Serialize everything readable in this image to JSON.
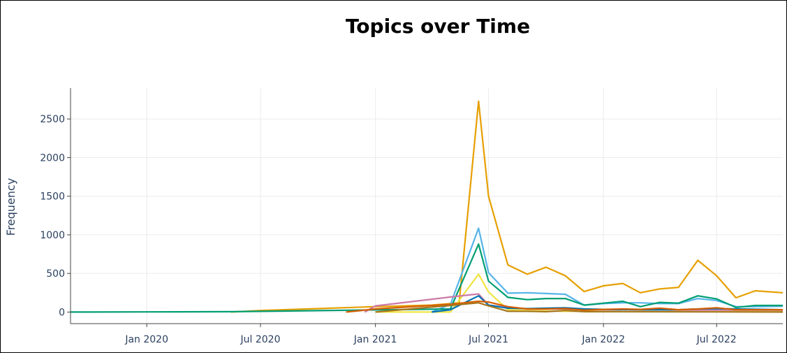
{
  "chart_data": {
    "type": "line",
    "title": "Topics over Time",
    "xlabel": "",
    "ylabel": "Frequency",
    "xlim": [
      "2019-09-01",
      "2022-10-15"
    ],
    "ylim": [
      -150,
      2900
    ],
    "grid": true,
    "legend": "none",
    "x_ticks": [
      {
        "value": "2020-01-01",
        "label": "Jan 2020"
      },
      {
        "value": "2020-07-01",
        "label": "Jul 2020"
      },
      {
        "value": "2021-01-01",
        "label": "Jan 2021"
      },
      {
        "value": "2021-07-01",
        "label": "Jul 2021"
      },
      {
        "value": "2022-01-01",
        "label": "Jan 2022"
      },
      {
        "value": "2022-07-01",
        "label": "Jul 2022"
      }
    ],
    "y_ticks": [
      {
        "value": 0,
        "label": "0"
      },
      {
        "value": 500,
        "label": "500"
      },
      {
        "value": 1000,
        "label": "1000"
      },
      {
        "value": 1500,
        "label": "1500"
      },
      {
        "value": 2000,
        "label": "2000"
      },
      {
        "value": 2500,
        "label": "2500"
      }
    ],
    "series": [
      {
        "color": "#E69F00",
        "points": [
          [
            "2020-05-15",
            0
          ],
          [
            "2020-07-01",
            20
          ],
          [
            "2020-10-01",
            45
          ],
          [
            "2021-01-01",
            70
          ],
          [
            "2021-04-01",
            90
          ],
          [
            "2021-05-15",
            120
          ],
          [
            "2021-06-15",
            2730
          ],
          [
            "2021-07-01",
            1500
          ],
          [
            "2021-08-01",
            610
          ],
          [
            "2021-09-01",
            490
          ],
          [
            "2021-10-01",
            580
          ],
          [
            "2021-11-01",
            470
          ],
          [
            "2021-12-01",
            265
          ],
          [
            "2022-01-01",
            340
          ],
          [
            "2022-02-01",
            370
          ],
          [
            "2022-03-01",
            250
          ],
          [
            "2022-04-01",
            300
          ],
          [
            "2022-05-01",
            320
          ],
          [
            "2022-06-01",
            670
          ],
          [
            "2022-07-01",
            470
          ],
          [
            "2022-08-01",
            185
          ],
          [
            "2022-09-01",
            275
          ],
          [
            "2022-10-15",
            250
          ]
        ]
      },
      {
        "color": "#56B4E9",
        "points": [
          [
            "2021-04-01",
            0
          ],
          [
            "2021-05-01",
            100
          ],
          [
            "2021-06-15",
            1085
          ],
          [
            "2021-07-01",
            510
          ],
          [
            "2021-08-01",
            245
          ],
          [
            "2021-09-01",
            250
          ],
          [
            "2021-10-01",
            240
          ],
          [
            "2021-11-01",
            230
          ],
          [
            "2021-12-01",
            90
          ],
          [
            "2022-01-01",
            110
          ],
          [
            "2022-02-01",
            120
          ],
          [
            "2022-03-01",
            120
          ],
          [
            "2022-04-01",
            110
          ],
          [
            "2022-05-01",
            110
          ],
          [
            "2022-06-01",
            175
          ],
          [
            "2022-07-01",
            150
          ],
          [
            "2022-08-01",
            70
          ],
          [
            "2022-09-01",
            70
          ],
          [
            "2022-10-15",
            75
          ]
        ]
      },
      {
        "color": "#009E73",
        "points": [
          [
            "2019-09-01",
            0
          ],
          [
            "2020-01-01",
            2
          ],
          [
            "2020-05-15",
            5
          ],
          [
            "2021-05-01",
            40
          ],
          [
            "2021-06-15",
            880
          ],
          [
            "2021-07-01",
            400
          ],
          [
            "2021-08-01",
            190
          ],
          [
            "2021-09-01",
            160
          ],
          [
            "2021-10-01",
            175
          ],
          [
            "2021-11-01",
            175
          ],
          [
            "2021-12-01",
            90
          ],
          [
            "2022-01-01",
            115
          ],
          [
            "2022-02-01",
            140
          ],
          [
            "2022-03-01",
            70
          ],
          [
            "2022-04-01",
            125
          ],
          [
            "2022-05-01",
            115
          ],
          [
            "2022-06-01",
            210
          ],
          [
            "2022-07-01",
            170
          ],
          [
            "2022-08-01",
            60
          ],
          [
            "2022-09-01",
            85
          ],
          [
            "2022-10-15",
            85
          ]
        ]
      },
      {
        "color": "#F0E442",
        "points": [
          [
            "2021-01-01",
            0
          ],
          [
            "2021-05-01",
            0
          ],
          [
            "2021-06-15",
            490
          ],
          [
            "2021-07-01",
            260
          ],
          [
            "2021-08-01",
            30
          ],
          [
            "2021-09-01",
            20
          ],
          [
            "2021-10-01",
            15
          ],
          [
            "2021-11-01",
            10
          ],
          [
            "2021-12-01",
            10
          ],
          [
            "2022-01-01",
            5
          ],
          [
            "2022-10-15",
            5
          ]
        ]
      },
      {
        "color": "#CC79A7",
        "points": [
          [
            "2020-12-15",
            0
          ],
          [
            "2021-01-01",
            80
          ],
          [
            "2021-05-01",
            195
          ],
          [
            "2021-06-15",
            235
          ],
          [
            "2021-07-01",
            90
          ],
          [
            "2021-08-01",
            60
          ],
          [
            "2021-09-01",
            40
          ],
          [
            "2021-10-01",
            40
          ],
          [
            "2021-11-01",
            40
          ],
          [
            "2021-12-01",
            30
          ],
          [
            "2022-01-01",
            30
          ],
          [
            "2022-06-01",
            25
          ],
          [
            "2022-10-15",
            25
          ]
        ]
      },
      {
        "color": "#0072B2",
        "points": [
          [
            "2021-04-01",
            0
          ],
          [
            "2021-05-01",
            30
          ],
          [
            "2021-06-15",
            210
          ],
          [
            "2021-07-01",
            90
          ],
          [
            "2021-08-01",
            50
          ],
          [
            "2021-09-01",
            45
          ],
          [
            "2021-10-01",
            50
          ],
          [
            "2021-11-01",
            55
          ],
          [
            "2021-12-01",
            40
          ],
          [
            "2022-01-01",
            35
          ],
          [
            "2022-03-01",
            30
          ],
          [
            "2022-05-01",
            30
          ],
          [
            "2022-06-01",
            40
          ],
          [
            "2022-07-01",
            45
          ],
          [
            "2022-10-15",
            30
          ]
        ]
      },
      {
        "color": "#D55E00",
        "points": [
          [
            "2020-11-15",
            0
          ],
          [
            "2021-01-01",
            40
          ],
          [
            "2021-05-01",
            100
          ],
          [
            "2021-06-15",
            140
          ],
          [
            "2021-07-01",
            130
          ],
          [
            "2021-08-01",
            70
          ],
          [
            "2021-09-01",
            40
          ],
          [
            "2021-10-01",
            40
          ],
          [
            "2021-11-01",
            45
          ],
          [
            "2021-12-01",
            25
          ],
          [
            "2022-01-01",
            35
          ],
          [
            "2022-02-01",
            40
          ],
          [
            "2022-03-01",
            35
          ],
          [
            "2022-04-01",
            50
          ],
          [
            "2022-05-01",
            30
          ],
          [
            "2022-06-01",
            40
          ],
          [
            "2022-07-01",
            55
          ],
          [
            "2022-08-01",
            30
          ],
          [
            "2022-09-01",
            30
          ],
          [
            "2022-10-15",
            30
          ]
        ]
      },
      {
        "color": "#A6761D",
        "points": [
          [
            "2021-01-01",
            0
          ],
          [
            "2021-05-01",
            85
          ],
          [
            "2021-06-15",
            120
          ],
          [
            "2021-07-01",
            80
          ],
          [
            "2021-08-01",
            10
          ],
          [
            "2021-09-01",
            10
          ],
          [
            "2021-10-01",
            5
          ],
          [
            "2021-11-01",
            20
          ],
          [
            "2021-12-01",
            5
          ],
          [
            "2022-01-01",
            5
          ],
          [
            "2022-10-15",
            0
          ]
        ]
      }
    ]
  }
}
